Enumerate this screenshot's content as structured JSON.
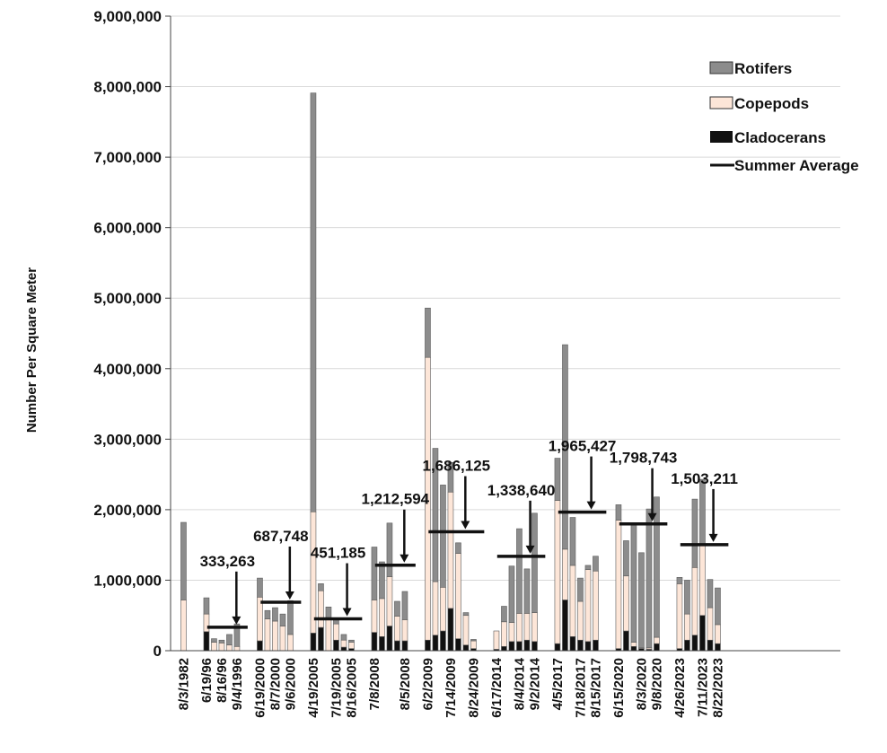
{
  "chart_data": {
    "type": "bar",
    "stacked": true,
    "title": "",
    "ylabel": "Number Per Square Meter",
    "xlabel": "",
    "ylim": [
      0,
      9000000
    ],
    "yticks": [
      0,
      1000000,
      2000000,
      3000000,
      4000000,
      5000000,
      6000000,
      7000000,
      8000000,
      9000000
    ],
    "ytick_labels": [
      "0",
      "1,000,000",
      "2,000,000",
      "3,000,000",
      "4,000,000",
      "5,000,000",
      "6,000,000",
      "7,000,000",
      "8,000,000",
      "9,000,000"
    ],
    "grid": true,
    "legend_position": "top-right",
    "colors": {
      "Rotifers": "#8c8c8c",
      "Copepods": "#fde6d8",
      "Cladocerans": "#111111",
      "Summer Average": "#111111"
    },
    "legend": [
      "Rotifers",
      "Copepods",
      "Cladocerans",
      "Summer Average"
    ],
    "groups": [
      {
        "x_labels": [
          "8/3/1982"
        ],
        "Cladocerans": [
          0
        ],
        "Copepods": [
          720000
        ],
        "Rotifers": [
          1100000
        ]
      },
      {
        "x_labels": [
          "6/19/96",
          "8/16/96",
          "9/4/1996"
        ],
        "Cladocerans": [
          270000,
          0,
          0,
          0,
          0
        ],
        "Copepods": [
          250000,
          120000,
          110000,
          80000,
          60000
        ],
        "Rotifers": [
          230000,
          50000,
          40000,
          150000,
          320000
        ],
        "summer_average": 333263,
        "average_label": "333,263"
      },
      {
        "x_labels": [
          "6/19/2000",
          "8/7/2000",
          "9/6/2000"
        ],
        "Cladocerans": [
          140000,
          0,
          0,
          0,
          0
        ],
        "Copepods": [
          620000,
          450000,
          420000,
          350000,
          230000
        ],
        "Rotifers": [
          270000,
          120000,
          190000,
          170000,
          480000
        ],
        "summer_average": 687748,
        "average_label": "687,748"
      },
      {
        "x_labels": [
          "4/19/2005",
          "7/19/2005",
          "8/16/2005"
        ],
        "Cladocerans": [
          250000,
          330000,
          0,
          150000,
          50000,
          30000
        ],
        "Copepods": [
          1720000,
          520000,
          460000,
          230000,
          100000,
          90000
        ],
        "Rotifers": [
          5940000,
          100000,
          160000,
          60000,
          80000,
          30000
        ],
        "summer_average": 451185,
        "average_label": "451,185"
      },
      {
        "x_labels": [
          "7/8/2008",
          "8/5/2008"
        ],
        "Cladocerans": [
          260000,
          200000,
          350000,
          140000,
          140000
        ],
        "Copepods": [
          460000,
          540000,
          700000,
          350000,
          300000
        ],
        "Rotifers": [
          750000,
          520000,
          760000,
          210000,
          400000
        ],
        "summer_average": 1212594,
        "average_label": "1,212,594"
      },
      {
        "x_labels": [
          "6/2/2009",
          "7/14/2009",
          "8/24/2009"
        ],
        "Cladocerans": [
          150000,
          220000,
          280000,
          600000,
          170000,
          80000,
          30000
        ],
        "Copepods": [
          4010000,
          760000,
          620000,
          1650000,
          1210000,
          420000,
          110000
        ],
        "Rotifers": [
          700000,
          1890000,
          1450000,
          420000,
          150000,
          40000,
          20000
        ],
        "summer_average": 1686125,
        "average_label": "1,686,125"
      },
      {
        "x_labels": [
          "6/17/2014",
          "8/4/2014",
          "9/2/2014"
        ],
        "Cladocerans": [
          20000,
          60000,
          130000,
          130000,
          150000,
          130000
        ],
        "Copepods": [
          260000,
          350000,
          270000,
          400000,
          380000,
          410000
        ],
        "Rotifers": [
          0,
          220000,
          800000,
          1200000,
          630000,
          1410000
        ],
        "summer_average": 1338640,
        "average_label": "1,338,640"
      },
      {
        "x_labels": [
          "4/5/2017",
          "7/18/2017",
          "8/15/2017"
        ],
        "Cladocerans": [
          100000,
          720000,
          200000,
          150000,
          130000,
          150000
        ],
        "Copepods": [
          2030000,
          720000,
          1010000,
          550000,
          1020000,
          980000
        ],
        "Rotifers": [
          600000,
          2900000,
          680000,
          330000,
          60000,
          210000
        ],
        "summer_average": 1965427,
        "average_label": "1,965,427"
      },
      {
        "x_labels": [
          "6/15/2020",
          "8/3/2020",
          "9/8/2020"
        ],
        "Cladocerans": [
          30000,
          280000,
          60000,
          30000,
          20000,
          100000
        ],
        "Copepods": [
          1820000,
          780000,
          60000,
          10000,
          20000,
          90000
        ],
        "Rotifers": [
          220000,
          500000,
          1690000,
          1350000,
          1970000,
          1990000
        ],
        "summer_average": 1798743,
        "average_label": "1,798,743"
      },
      {
        "x_labels": [
          "4/26/2023",
          "7/11/2023",
          "8/22/2023"
        ],
        "Cladocerans": [
          30000,
          150000,
          220000,
          500000,
          150000,
          100000
        ],
        "Copepods": [
          920000,
          370000,
          960000,
          1000000,
          460000,
          270000
        ],
        "Rotifers": [
          90000,
          480000,
          970000,
          930000,
          400000,
          520000
        ],
        "summer_average": 1503211,
        "average_label": "1,503,211"
      }
    ]
  }
}
